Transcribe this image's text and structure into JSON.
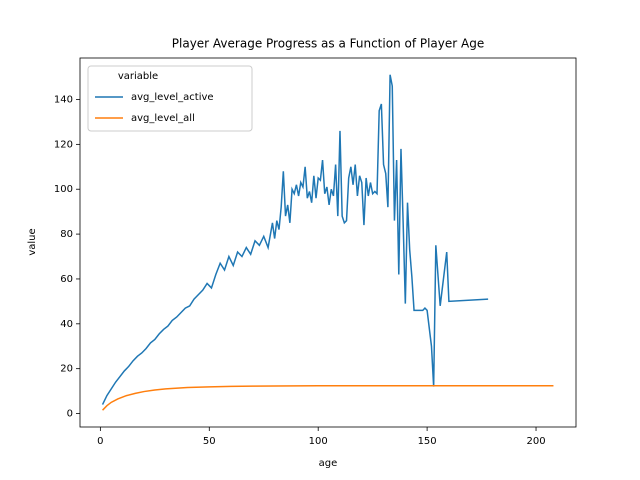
{
  "chart_data": {
    "type": "line",
    "title": "Player Average Progress as a Function of Player Age",
    "x_label": "age",
    "y_label": "value",
    "legend_title": "variable",
    "legend": "upper left",
    "grid": false,
    "xlim": [
      -9.35,
      218.35
    ],
    "ylim": [
      -6,
      158.5
    ],
    "xticks": [
      0,
      50,
      100,
      150,
      200
    ],
    "yticks": [
      0,
      20,
      40,
      60,
      80,
      100,
      120,
      140
    ],
    "series": [
      {
        "name": "avg_level_active",
        "color": "#1f77b4",
        "x": [
          1,
          3,
          5,
          7,
          9,
          11,
          13,
          15,
          17,
          19,
          21,
          23,
          25,
          27,
          29,
          31,
          33,
          35,
          37,
          39,
          41,
          43,
          45,
          47,
          49,
          51,
          53,
          55,
          57,
          59,
          61,
          63,
          65,
          67,
          69,
          71,
          73,
          75,
          77,
          79,
          80,
          81,
          82,
          83,
          84,
          85,
          86,
          87,
          88,
          89,
          90,
          91,
          92,
          93,
          94,
          95,
          96,
          97,
          98,
          99,
          100,
          101,
          102,
          103,
          104,
          105,
          106,
          107,
          108,
          109,
          110,
          111,
          112,
          113,
          114,
          115,
          116,
          117,
          118,
          119,
          120,
          121,
          122,
          123,
          124,
          125,
          126,
          127,
          128,
          129,
          130,
          131,
          132,
          133,
          134,
          135,
          136,
          137,
          138,
          139,
          140,
          141,
          142,
          143,
          144,
          145,
          146,
          147,
          148,
          149,
          150,
          152,
          153,
          154,
          156,
          159,
          160,
          178
        ],
        "values": [
          4,
          8,
          11,
          14,
          16.5,
          19,
          21,
          23.5,
          25.5,
          27,
          29,
          31.5,
          33,
          35.5,
          37.5,
          39,
          41.5,
          43,
          45,
          47,
          48,
          51,
          53,
          55,
          58,
          56,
          62,
          67,
          64,
          70,
          66,
          72,
          70,
          74,
          71,
          77,
          75,
          79,
          74,
          85,
          78,
          86,
          82,
          92,
          108,
          88,
          93,
          85,
          100,
          98,
          102,
          97,
          103,
          101,
          110,
          96,
          99,
          94,
          106,
          96,
          105,
          104,
          113,
          98,
          101,
          93,
          100,
          97,
          111,
          88,
          126,
          88,
          85,
          86,
          105,
          110,
          102,
          111,
          97,
          106,
          103,
          84,
          105,
          97,
          103,
          98,
          99,
          98,
          135,
          138,
          111,
          107,
          92,
          151,
          146,
          86,
          113,
          62,
          118,
          85,
          49,
          94,
          73,
          61,
          46,
          46,
          46,
          46,
          46,
          47,
          46,
          30,
          12,
          75,
          48,
          72,
          50,
          51
        ]
      },
      {
        "name": "avg_level_all",
        "color": "#ff7f0e",
        "x": [
          1,
          3,
          5,
          8,
          12,
          16,
          20,
          25,
          30,
          40,
          50,
          60,
          70,
          80,
          100,
          150,
          208
        ],
        "values": [
          1.5,
          3.5,
          5,
          6.5,
          8,
          9,
          9.8,
          10.5,
          11,
          11.6,
          11.9,
          12.1,
          12.2,
          12.3,
          12.4,
          12.4,
          12.4
        ]
      }
    ]
  }
}
